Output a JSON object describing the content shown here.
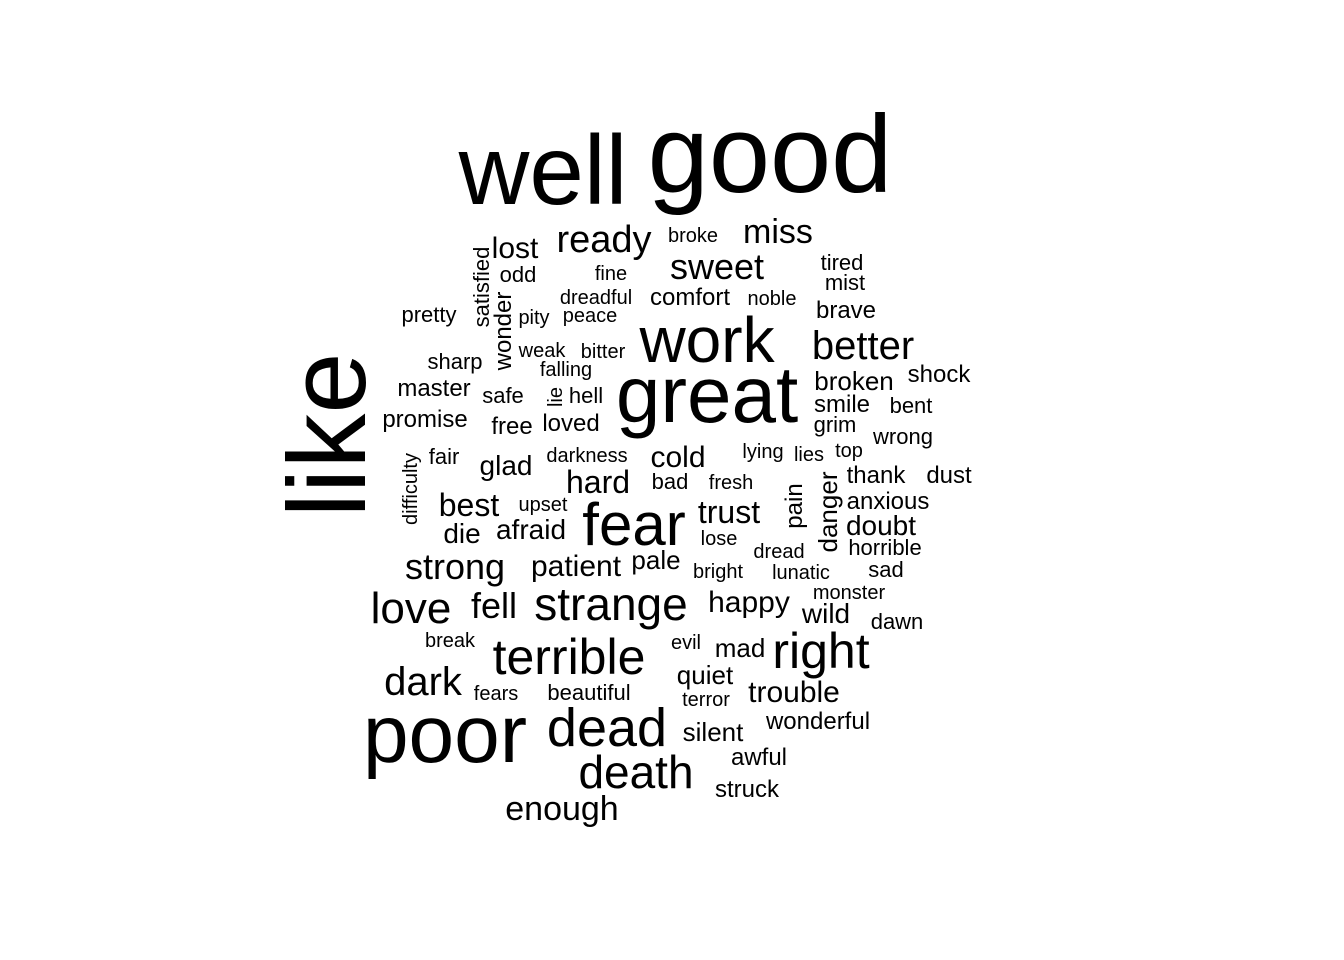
{
  "words": [
    "well",
    "good",
    "like",
    "great",
    "work",
    "poor",
    "fear",
    "dead",
    "terrible",
    "right",
    "strange",
    "death",
    "better",
    "ready",
    "sweet",
    "miss",
    "love",
    "strong",
    "enough",
    "dark",
    "trouble",
    "fell",
    "happy",
    "patient",
    "best",
    "hard",
    "trust",
    "cold",
    "lost",
    "afraid",
    "die",
    "glad",
    "doubt",
    "broken",
    "wild",
    "quiet",
    "mad",
    "silent",
    "pale",
    "wonderful",
    "awful",
    "struck",
    "shock",
    "master",
    "promise",
    "free",
    "loved",
    "comfort",
    "pretty",
    "sharp",
    "anxious",
    "thank",
    "dust",
    "smile",
    "bent",
    "grim",
    "wrong",
    "brave",
    "tired",
    "mist",
    "odd",
    "fine",
    "broke",
    "dreadful",
    "noble",
    "pity",
    "peace",
    "weak",
    "bitter",
    "falling",
    "safe",
    "hell",
    "fair",
    "darkness",
    "bad",
    "fresh",
    "lying",
    "lies",
    "top",
    "upset",
    "lose",
    "dread",
    "horrible",
    "sad",
    "bright",
    "lunatic",
    "monster",
    "dawn",
    "break",
    "evil",
    "fears",
    "beautiful",
    "terror",
    "satisfied",
    "wonder",
    "lie",
    "difficulty",
    "pain",
    "danger"
  ]
}
